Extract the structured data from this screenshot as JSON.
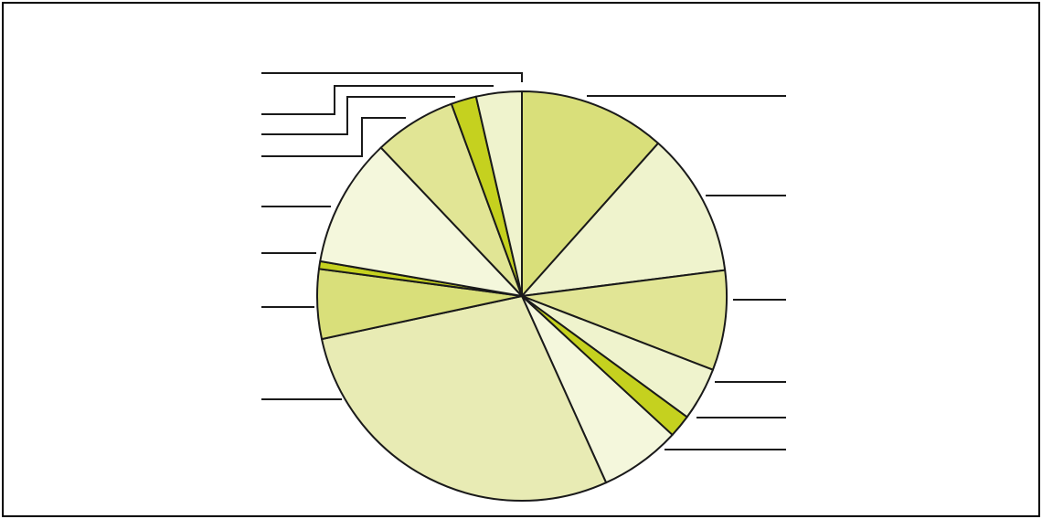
{
  "chart_data": {
    "type": "pie",
    "title": "",
    "start_angle_deg": 0,
    "direction": "clockwise",
    "slices": [
      {
        "label": "",
        "value": 11.6,
        "color": "#d9df7a"
      },
      {
        "label": "",
        "value": 11.4,
        "color": "#eff3cd"
      },
      {
        "label": "",
        "value": 7.9,
        "color": "#e1e595"
      },
      {
        "label": "",
        "value": 4.2,
        "color": "#eff3cd"
      },
      {
        "label": "",
        "value": 1.8,
        "color": "#c5d11f"
      },
      {
        "label": "",
        "value": 6.4,
        "color": "#f4f7dc"
      },
      {
        "label": "",
        "value": 28.4,
        "color": "#e8ebb4"
      },
      {
        "label": "",
        "value": 5.5,
        "color": "#d9df7a"
      },
      {
        "label": "",
        "value": 0.6,
        "color": "#c5d11f"
      },
      {
        "label": "",
        "value": 10.2,
        "color": "#f4f7dc"
      },
      {
        "label": "",
        "value": 6.5,
        "color": "#e1e595"
      },
      {
        "label": "",
        "value": 2.0,
        "color": "#c5d11f"
      },
      {
        "label": "",
        "value": 3.6,
        "color": "#eff3cd"
      }
    ]
  }
}
